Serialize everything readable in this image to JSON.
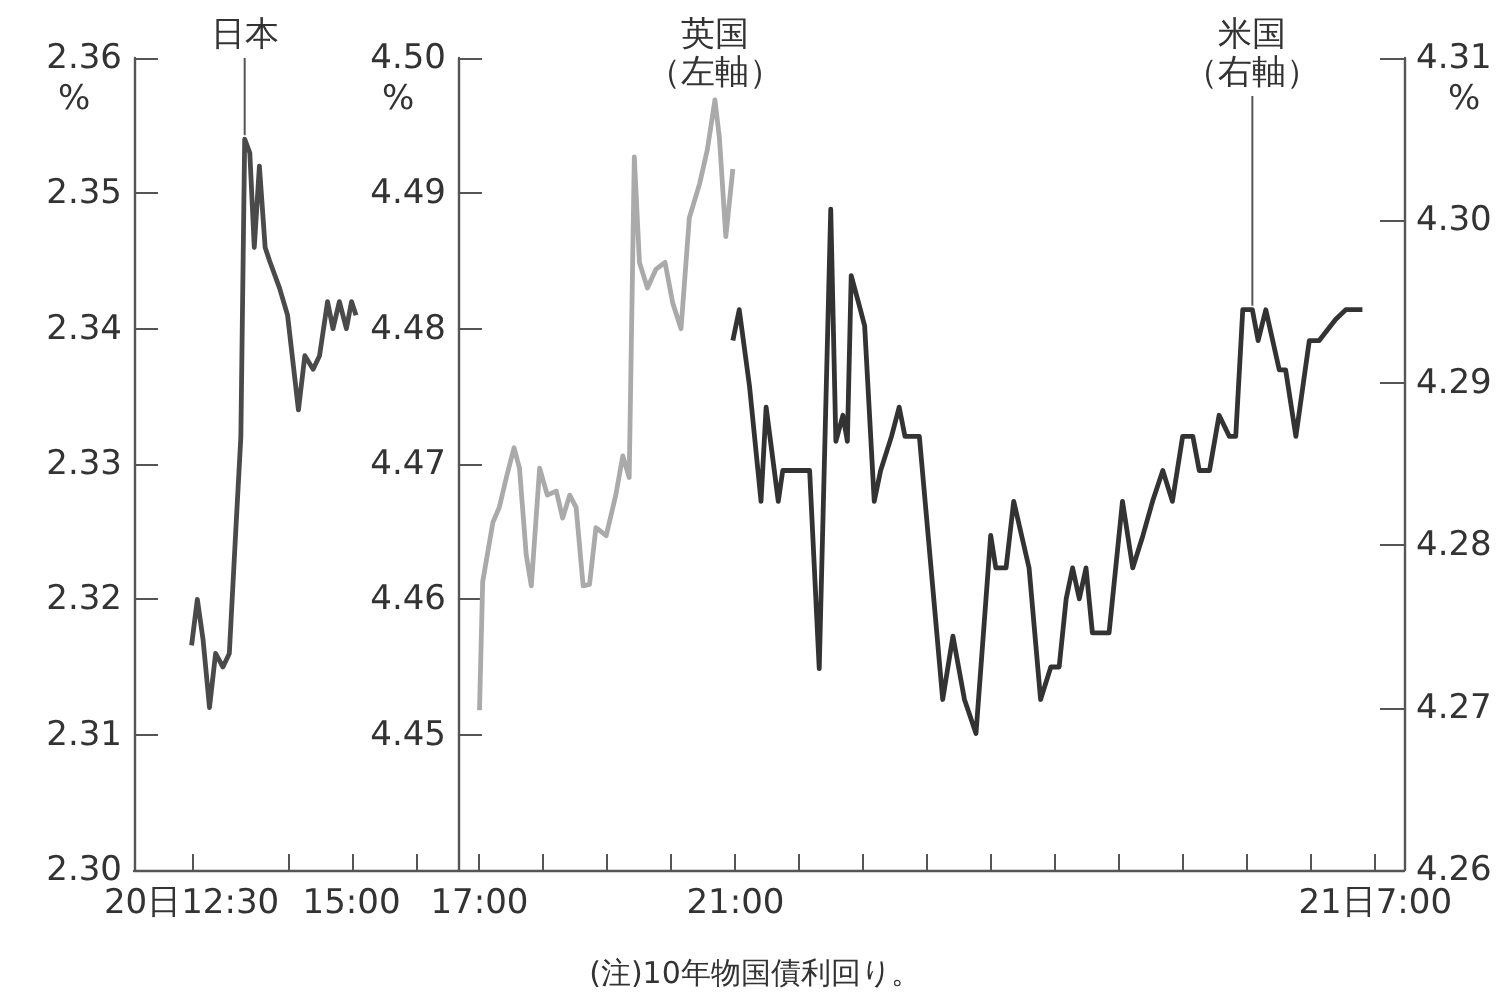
{
  "chart_data": {
    "type": "line",
    "xlim": [
      11.6,
      31.45
    ],
    "xticks": [
      {
        "value": 12.5,
        "label": "20日12:30"
      },
      {
        "value": 14,
        "label": null
      },
      {
        "value": 15,
        "label": "15:00"
      },
      {
        "value": 16,
        "label": null
      },
      {
        "value": 17,
        "label": "17:00"
      },
      {
        "value": 18,
        "label": null
      },
      {
        "value": 19,
        "label": null
      },
      {
        "value": 20,
        "label": null
      },
      {
        "value": 21,
        "label": "21:00"
      },
      {
        "value": 22,
        "label": null
      },
      {
        "value": 23,
        "label": null
      },
      {
        "value": 24,
        "label": null
      },
      {
        "value": 25,
        "label": null
      },
      {
        "value": 26,
        "label": null
      },
      {
        "value": 27,
        "label": null
      },
      {
        "value": 28,
        "label": null
      },
      {
        "value": 29,
        "label": null
      },
      {
        "value": 30,
        "label": null
      },
      {
        "value": 31,
        "label": "21日7:00"
      }
    ],
    "ylim": [
      4.26,
      4.31
    ],
    "yticks": [
      4.26,
      4.27,
      4.28,
      4.29,
      {
        "value": 4.3,
        "label": "4.30"
      },
      4.31
    ],
    "ylabel": "%",
    "y2lim": [
      2.3,
      2.36
    ],
    "y2ticks": [
      {
        "value": 2.3,
        "label": "2.30"
      },
      2.31,
      2.32,
      2.33,
      2.34,
      2.35,
      2.36
    ],
    "y2label": "%",
    "y3lim": [
      4.44,
      4.5
    ],
    "y3ticks": [
      4.45,
      4.46,
      4.47,
      4.48,
      4.49,
      {
        "value": 4.5,
        "label": "4.50"
      }
    ],
    "y3label": "%",
    "marker": "none",
    "line_style": "solid",
    "series": [
      {
        "name": "日本",
        "color": "#4a4a4a",
        "axis": "y2",
        "x": [
          12.5,
          12.59,
          12.68,
          12.78,
          12.875,
          12.99,
          13.09,
          13.19,
          13.27,
          13.33,
          13.41,
          13.48,
          13.56,
          13.65,
          13.72,
          13.875,
          14.0,
          14.17,
          14.27,
          14.4,
          14.5,
          14.625,
          14.71,
          14.81,
          14.92,
          15.0,
          15.07
        ],
        "values": [
          2.3166,
          2.32,
          2.317,
          2.312,
          2.316,
          2.315,
          2.316,
          2.325,
          2.332,
          2.354,
          2.353,
          2.346,
          2.352,
          2.346,
          2.345,
          2.343,
          2.341,
          2.334,
          2.338,
          2.337,
          2.338,
          2.342,
          2.34,
          2.342,
          2.34,
          2.342,
          2.341
        ]
      },
      {
        "name": "英国",
        "color": "#aaaaaa",
        "axis": "y3",
        "x": [
          17.0,
          17.05,
          17.21,
          17.31,
          17.42,
          17.54,
          17.625,
          17.73,
          17.81,
          17.94,
          18.06,
          18.2,
          18.3,
          18.41,
          18.51,
          18.62,
          18.72,
          18.82,
          18.98,
          19.13,
          19.24,
          19.34,
          19.42,
          19.5,
          19.625,
          19.76,
          19.9,
          20.02,
          20.15,
          20.28,
          20.44,
          20.56,
          20.68,
          20.75,
          20.85,
          20.96
        ],
        "values": [
          4.4518,
          4.4613,
          4.4657,
          4.4668,
          4.469,
          4.4712,
          4.4697,
          4.4633,
          4.461,
          4.4697,
          4.4677,
          4.468,
          4.466,
          4.4677,
          4.4668,
          4.461,
          4.4611,
          4.4653,
          4.4647,
          4.4677,
          4.4706,
          4.469,
          4.4927,
          4.4849,
          4.483,
          4.4844,
          4.4849,
          4.4819,
          4.48,
          4.4882,
          4.4907,
          4.4932,
          4.4969,
          4.4941,
          4.4868,
          4.4918
        ]
      },
      {
        "name": "米国",
        "color": "#333333",
        "x": [
          20.96,
          21.06,
          21.22,
          21.4,
          21.48,
          21.67,
          21.74,
          22.16,
          22.31,
          22.49,
          22.57,
          22.68,
          22.75,
          22.81,
          22.94,
          23.02,
          23.17,
          23.27,
          23.44,
          23.56,
          23.65,
          23.875,
          24.24,
          24.4,
          24.58,
          24.76,
          24.99,
          25.07,
          25.23,
          25.35,
          25.59,
          25.77,
          25.93,
          26.06,
          26.17,
          26.27,
          26.375,
          26.48,
          26.58,
          26.84,
          27.05,
          27.21,
          27.37,
          27.52,
          27.68,
          27.83,
          27.99,
          28.15,
          28.25,
          28.41,
          28.56,
          28.72,
          28.82,
          28.93,
          29.08,
          29.17,
          29.29,
          29.5,
          29.6,
          29.76,
          29.97,
          30.125,
          30.38,
          30.54,
          30.8
        ],
        "values": [
          4.2926,
          4.2945,
          4.2898,
          4.2827,
          4.2885,
          4.2827,
          4.2846,
          4.2846,
          4.2724,
          4.3007,
          4.2864,
          4.288,
          4.2864,
          4.2966,
          4.2947,
          4.2935,
          4.2827,
          4.2846,
          4.2867,
          4.2885,
          4.2867,
          4.2867,
          4.2705,
          4.2744,
          4.2705,
          4.2684,
          4.2806,
          4.2786,
          4.2786,
          4.2827,
          4.2786,
          4.2705,
          4.2725,
          4.2725,
          4.2767,
          4.2786,
          4.2767,
          4.2786,
          4.2746,
          4.2746,
          4.2827,
          4.2786,
          4.2806,
          4.2827,
          4.2846,
          4.2827,
          4.2867,
          4.2867,
          4.2846,
          4.2846,
          4.288,
          4.2867,
          4.2867,
          4.2945,
          4.2945,
          4.2926,
          4.2945,
          4.2908,
          4.2908,
          4.2867,
          4.2926,
          4.2926,
          4.2939,
          4.2945,
          4.2945
        ]
      }
    ],
    "annotations": [
      "（左軸）",
      {
        "text": "（右軸）",
        "x": 29.08,
        "y": 4.2945
      },
      "(注)10年物国債利回り。"
    ]
  }
}
